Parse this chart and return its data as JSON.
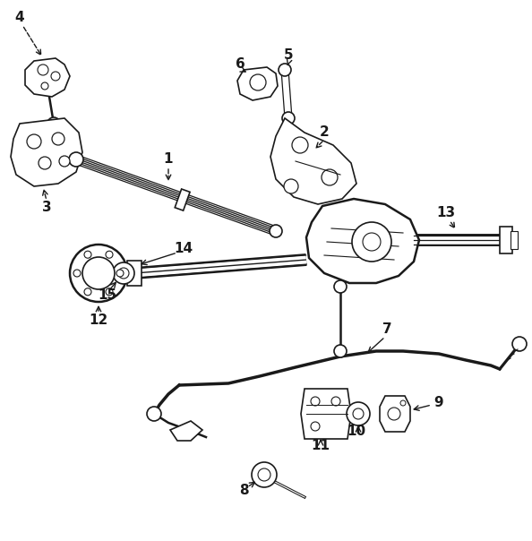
{
  "bg_color": "#ffffff",
  "line_color": "#1a1a1a",
  "figsize": [
    5.94,
    6.04
  ],
  "dpi": 100
}
